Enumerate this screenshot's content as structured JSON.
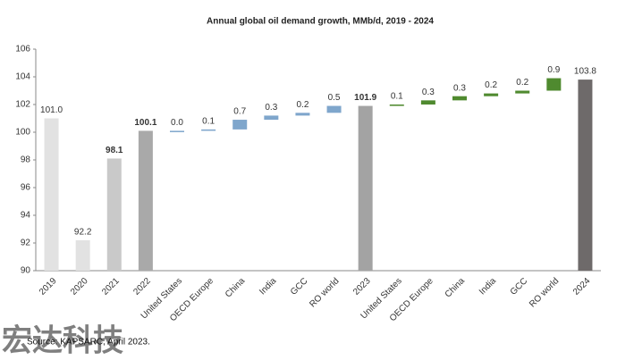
{
  "chart_data": {
    "type": "waterfall",
    "title": "Annual global oil demand growth, MMb/d, 2019 - 2024",
    "categories": [
      "2019",
      "2020",
      "2021",
      "2022",
      "United States",
      "OECD Europe",
      "China",
      "India",
      "GCC",
      "RO world",
      "2023",
      "United States",
      "OECD Europe",
      "China",
      "India",
      "GCC",
      "RO world",
      "2024"
    ],
    "values": [
      101.0,
      92.2,
      98.1,
      100.1,
      0.0,
      0.1,
      0.7,
      0.3,
      0.2,
      0.5,
      101.9,
      0.1,
      0.3,
      0.3,
      0.2,
      0.2,
      0.9,
      103.8
    ],
    "value_labels": [
      "101.0",
      "92.2",
      "98.1",
      "100.1",
      "0.0",
      "0.1",
      "0.7",
      "0.3",
      "0.2",
      "0.5",
      "101.9",
      "0.1",
      "0.3",
      "0.3",
      "0.2",
      "0.2",
      "0.9",
      "103.8"
    ],
    "measure": [
      "absolute",
      "absolute",
      "absolute",
      "absolute",
      "relative",
      "relative",
      "relative",
      "relative",
      "relative",
      "relative",
      "absolute",
      "relative",
      "relative",
      "relative",
      "relative",
      "relative",
      "relative",
      "absolute"
    ],
    "colors": [
      "#e2e2e2",
      "#e2e2e2",
      "#c9c9c9",
      "#a9a9a9",
      "#7fa6cc",
      "#7fa6cc",
      "#7fa6cc",
      "#7fa6cc",
      "#7fa6cc",
      "#7fa6cc",
      "#a3a3a3",
      "#4f8a2f",
      "#4f8a2f",
      "#4f8a2f",
      "#4f8a2f",
      "#4f8a2f",
      "#4f8a2f",
      "#6e6a6a"
    ],
    "ylim": [
      90,
      106
    ],
    "yticks": [
      90,
      92,
      94,
      96,
      98,
      100,
      102,
      104,
      106
    ],
    "grid": false,
    "source": "Source: KAPSARC, April 2023.",
    "watermark": "宏达科技"
  }
}
